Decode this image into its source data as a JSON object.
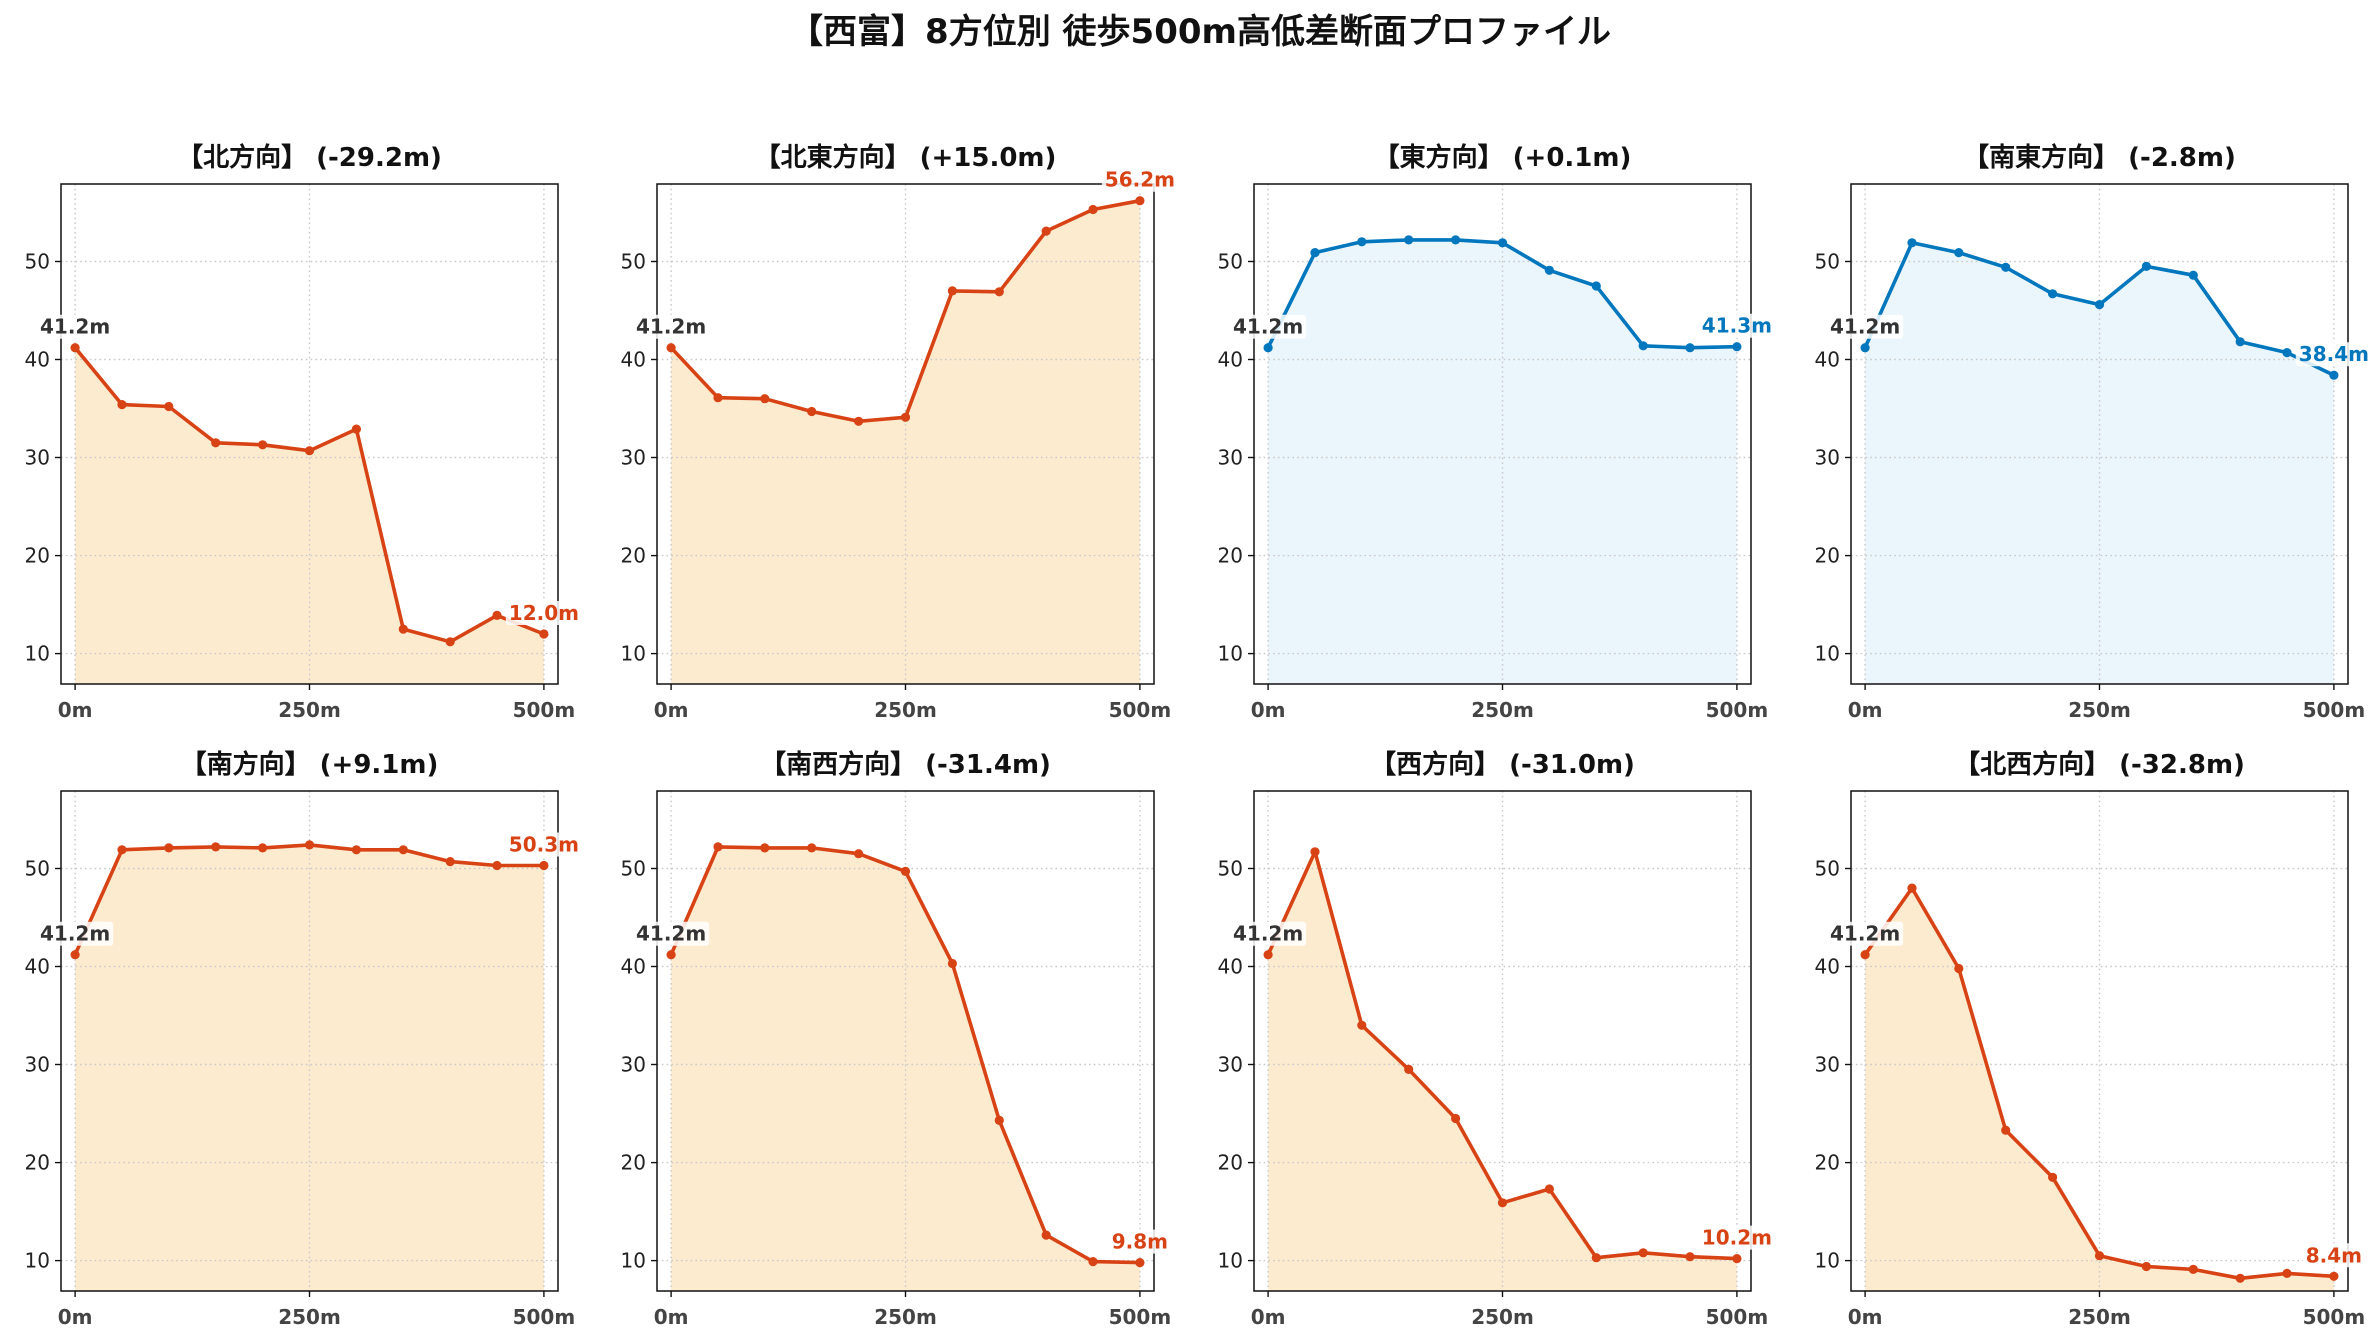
{
  "title": "【西富】8方位別 徒歩500m高低差断面プロファイル",
  "chart_data": [
    {
      "type": "area",
      "title": "【北方向】 (-29.2m)",
      "x": [
        0,
        50,
        100,
        150,
        200,
        250,
        300,
        350,
        400,
        450,
        500
      ],
      "y": [
        41.2,
        35.4,
        35.2,
        31.5,
        31.3,
        30.7,
        32.9,
        12.5,
        11.2,
        13.9,
        12.0
      ],
      "xlim": [
        -15,
        515
      ],
      "ylim": [
        6.9,
        57.9
      ],
      "x_ticks": [
        0,
        250,
        500
      ],
      "x_tick_labels": [
        "0m",
        "250m",
        "500m"
      ],
      "y_ticks": [
        10,
        20,
        30,
        40,
        50
      ],
      "y_tick_labels": [
        "10",
        "20",
        "30",
        "40",
        "50"
      ],
      "start_label": "41.2m",
      "end_label": "12.0m",
      "start_label_color": "#333333",
      "line_color": "#d84315",
      "fill_color": "#fdebd0",
      "grid": true
    },
    {
      "type": "area",
      "title": "【北東方向】 (+15.0m)",
      "x": [
        0,
        50,
        100,
        150,
        200,
        250,
        300,
        350,
        400,
        450,
        500
      ],
      "y": [
        41.2,
        36.1,
        36.0,
        34.7,
        33.7,
        34.1,
        47.0,
        46.9,
        53.1,
        55.3,
        56.2
      ],
      "xlim": [
        -15,
        515
      ],
      "ylim": [
        6.9,
        57.9
      ],
      "x_ticks": [
        0,
        250,
        500
      ],
      "x_tick_labels": [
        "0m",
        "250m",
        "500m"
      ],
      "y_ticks": [
        10,
        20,
        30,
        40,
        50
      ],
      "y_tick_labels": [
        "10",
        "20",
        "30",
        "40",
        "50"
      ],
      "start_label": "41.2m",
      "end_label": "56.2m",
      "start_label_color": "#333333",
      "line_color": "#d84315",
      "fill_color": "#fdebd0",
      "grid": true
    },
    {
      "type": "area",
      "title": "【東方向】 (+0.1m)",
      "x": [
        0,
        50,
        100,
        150,
        200,
        250,
        300,
        350,
        400,
        450,
        500
      ],
      "y": [
        41.2,
        50.9,
        52.0,
        52.2,
        52.2,
        51.9,
        49.1,
        47.5,
        41.4,
        41.2,
        41.3
      ],
      "xlim": [
        -15,
        515
      ],
      "ylim": [
        6.9,
        57.9
      ],
      "x_ticks": [
        0,
        250,
        500
      ],
      "x_tick_labels": [
        "0m",
        "250m",
        "500m"
      ],
      "y_ticks": [
        10,
        20,
        30,
        40,
        50
      ],
      "y_tick_labels": [
        "10",
        "20",
        "30",
        "40",
        "50"
      ],
      "start_label": "41.2m",
      "end_label": "41.3m",
      "start_label_color": "#333333",
      "line_color": "#0277bd",
      "fill_color": "#eaf6fc",
      "grid": true
    },
    {
      "type": "area",
      "title": "【南東方向】 (-2.8m)",
      "x": [
        0,
        50,
        100,
        150,
        200,
        250,
        300,
        350,
        400,
        450,
        500
      ],
      "y": [
        41.2,
        51.9,
        50.9,
        49.4,
        46.7,
        45.6,
        49.5,
        48.6,
        41.8,
        40.7,
        38.4
      ],
      "xlim": [
        -15,
        515
      ],
      "ylim": [
        6.9,
        57.9
      ],
      "x_ticks": [
        0,
        250,
        500
      ],
      "x_tick_labels": [
        "0m",
        "250m",
        "500m"
      ],
      "y_ticks": [
        10,
        20,
        30,
        40,
        50
      ],
      "y_tick_labels": [
        "10",
        "20",
        "30",
        "40",
        "50"
      ],
      "start_label": "41.2m",
      "end_label": "38.4m",
      "start_label_color": "#333333",
      "line_color": "#0277bd",
      "fill_color": "#eaf6fc",
      "grid": true
    },
    {
      "type": "area",
      "title": "【南方向】 (+9.1m)",
      "x": [
        0,
        50,
        100,
        150,
        200,
        250,
        300,
        350,
        400,
        450,
        500
      ],
      "y": [
        41.2,
        51.9,
        52.1,
        52.2,
        52.1,
        52.4,
        51.9,
        51.9,
        50.7,
        50.3,
        50.3
      ],
      "xlim": [
        -15,
        515
      ],
      "ylim": [
        6.9,
        57.9
      ],
      "x_ticks": [
        0,
        250,
        500
      ],
      "x_tick_labels": [
        "0m",
        "250m",
        "500m"
      ],
      "y_ticks": [
        10,
        20,
        30,
        40,
        50
      ],
      "y_tick_labels": [
        "10",
        "20",
        "30",
        "40",
        "50"
      ],
      "start_label": "41.2m",
      "end_label": "50.3m",
      "start_label_color": "#333333",
      "line_color": "#d84315",
      "fill_color": "#fdebd0",
      "grid": true
    },
    {
      "type": "area",
      "title": "【南西方向】 (-31.4m)",
      "x": [
        0,
        50,
        100,
        150,
        200,
        250,
        300,
        350,
        400,
        450,
        500
      ],
      "y": [
        41.2,
        52.2,
        52.1,
        52.1,
        51.5,
        49.7,
        40.3,
        24.3,
        12.6,
        9.9,
        9.8
      ],
      "xlim": [
        -15,
        515
      ],
      "ylim": [
        6.9,
        57.9
      ],
      "x_ticks": [
        0,
        250,
        500
      ],
      "x_tick_labels": [
        "0m",
        "250m",
        "500m"
      ],
      "y_ticks": [
        10,
        20,
        30,
        40,
        50
      ],
      "y_tick_labels": [
        "10",
        "20",
        "30",
        "40",
        "50"
      ],
      "start_label": "41.2m",
      "end_label": "9.8m",
      "start_label_color": "#333333",
      "line_color": "#d84315",
      "fill_color": "#fdebd0",
      "grid": true
    },
    {
      "type": "area",
      "title": "【西方向】 (-31.0m)",
      "x": [
        0,
        50,
        100,
        150,
        200,
        250,
        300,
        350,
        400,
        450,
        500
      ],
      "y": [
        41.2,
        51.7,
        34.0,
        29.5,
        24.5,
        15.9,
        17.3,
        10.3,
        10.8,
        10.4,
        10.2
      ],
      "xlim": [
        -15,
        515
      ],
      "ylim": [
        6.9,
        57.9
      ],
      "x_ticks": [
        0,
        250,
        500
      ],
      "x_tick_labels": [
        "0m",
        "250m",
        "500m"
      ],
      "y_ticks": [
        10,
        20,
        30,
        40,
        50
      ],
      "y_tick_labels": [
        "10",
        "20",
        "30",
        "40",
        "50"
      ],
      "start_label": "41.2m",
      "end_label": "10.2m",
      "start_label_color": "#333333",
      "line_color": "#d84315",
      "fill_color": "#fdebd0",
      "grid": true
    },
    {
      "type": "area",
      "title": "【北西方向】 (-32.8m)",
      "x": [
        0,
        50,
        100,
        150,
        200,
        250,
        300,
        350,
        400,
        450,
        500
      ],
      "y": [
        41.2,
        48.0,
        39.8,
        23.3,
        18.5,
        10.5,
        9.4,
        9.1,
        8.2,
        8.7,
        8.4
      ],
      "xlim": [
        -15,
        515
      ],
      "ylim": [
        6.9,
        57.9
      ],
      "x_ticks": [
        0,
        250,
        500
      ],
      "x_tick_labels": [
        "0m",
        "250m",
        "500m"
      ],
      "y_ticks": [
        10,
        20,
        30,
        40,
        50
      ],
      "y_tick_labels": [
        "10",
        "20",
        "30",
        "40",
        "50"
      ],
      "start_label": "41.2m",
      "end_label": "8.4m",
      "start_label_color": "#333333",
      "line_color": "#d84315",
      "fill_color": "#fdebd0",
      "grid": true
    }
  ]
}
